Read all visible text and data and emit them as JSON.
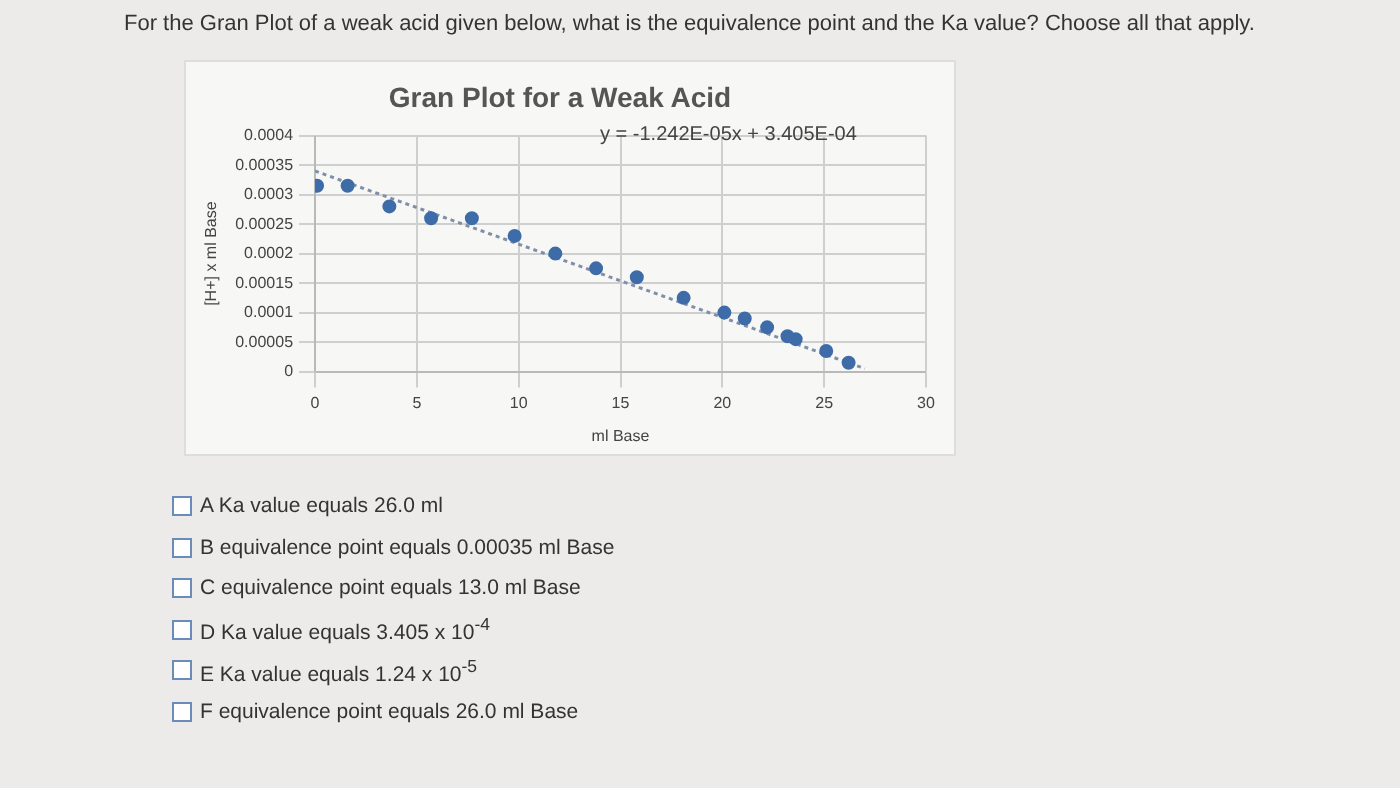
{
  "chart_data": {
    "type": "scatter",
    "title": "Gran Plot for a Weak Acid",
    "xlabel": "ml Base",
    "ylabel": "[H+] x ml Base",
    "xlim": [
      0,
      30
    ],
    "xticks": [
      0,
      5,
      10,
      15,
      20,
      25,
      30
    ],
    "ylim": [
      0,
      0.0004
    ],
    "yticks": [
      0,
      {
        "value": 5e-05,
        "label": "0.00005"
      },
      0.0001,
      0.00015,
      0.0002,
      0.00025,
      0.0003,
      0.00035,
      0.0004
    ],
    "grid": true,
    "legend": false,
    "marker": "circle",
    "series": [
      {
        "type": "scatter",
        "color": "#3e6ca8",
        "x": [
          0.1,
          1.6,
          3.65,
          5.7,
          7.7,
          9.8,
          11.8,
          13.8,
          15.8,
          18.1,
          20.1,
          21.1,
          22.2,
          23.2,
          23.6,
          25.1,
          26.2
        ],
        "values": [
          0.000315,
          0.000315,
          0.00028,
          0.00026,
          0.00026,
          0.00023,
          0.0002,
          0.000175,
          0.00016,
          0.000125,
          0.0001,
          9e-05,
          7.5e-05,
          6e-05,
          5.5e-05,
          3.5e-05,
          1.5e-05
        ]
      },
      {
        "type": "line",
        "color": "#7f8fa8",
        "line_style": "dotted",
        "marker": "none",
        "x": [
          0,
          27
        ],
        "values": [
          0.00034,
          5e-06
        ]
      }
    ],
    "annotations": [
      "For the Gran Plot of a weak acid given below, what is the equivalence point and the Ka value? Choose all that apply.",
      "y = -1.242E-05x + 3.405E-04",
      "A Ka value equals 26.0 ml",
      "B equivalence point equals 0.00035 ml Base",
      "C equivalence point equals 13.0 ml Base",
      "D Ka value equals 3.405 x 10$^{-4}$",
      "E Ka value equals 1.24 x 10$^{-5}$",
      "F equivalence point equals 26.0 ml Base"
    ]
  }
}
